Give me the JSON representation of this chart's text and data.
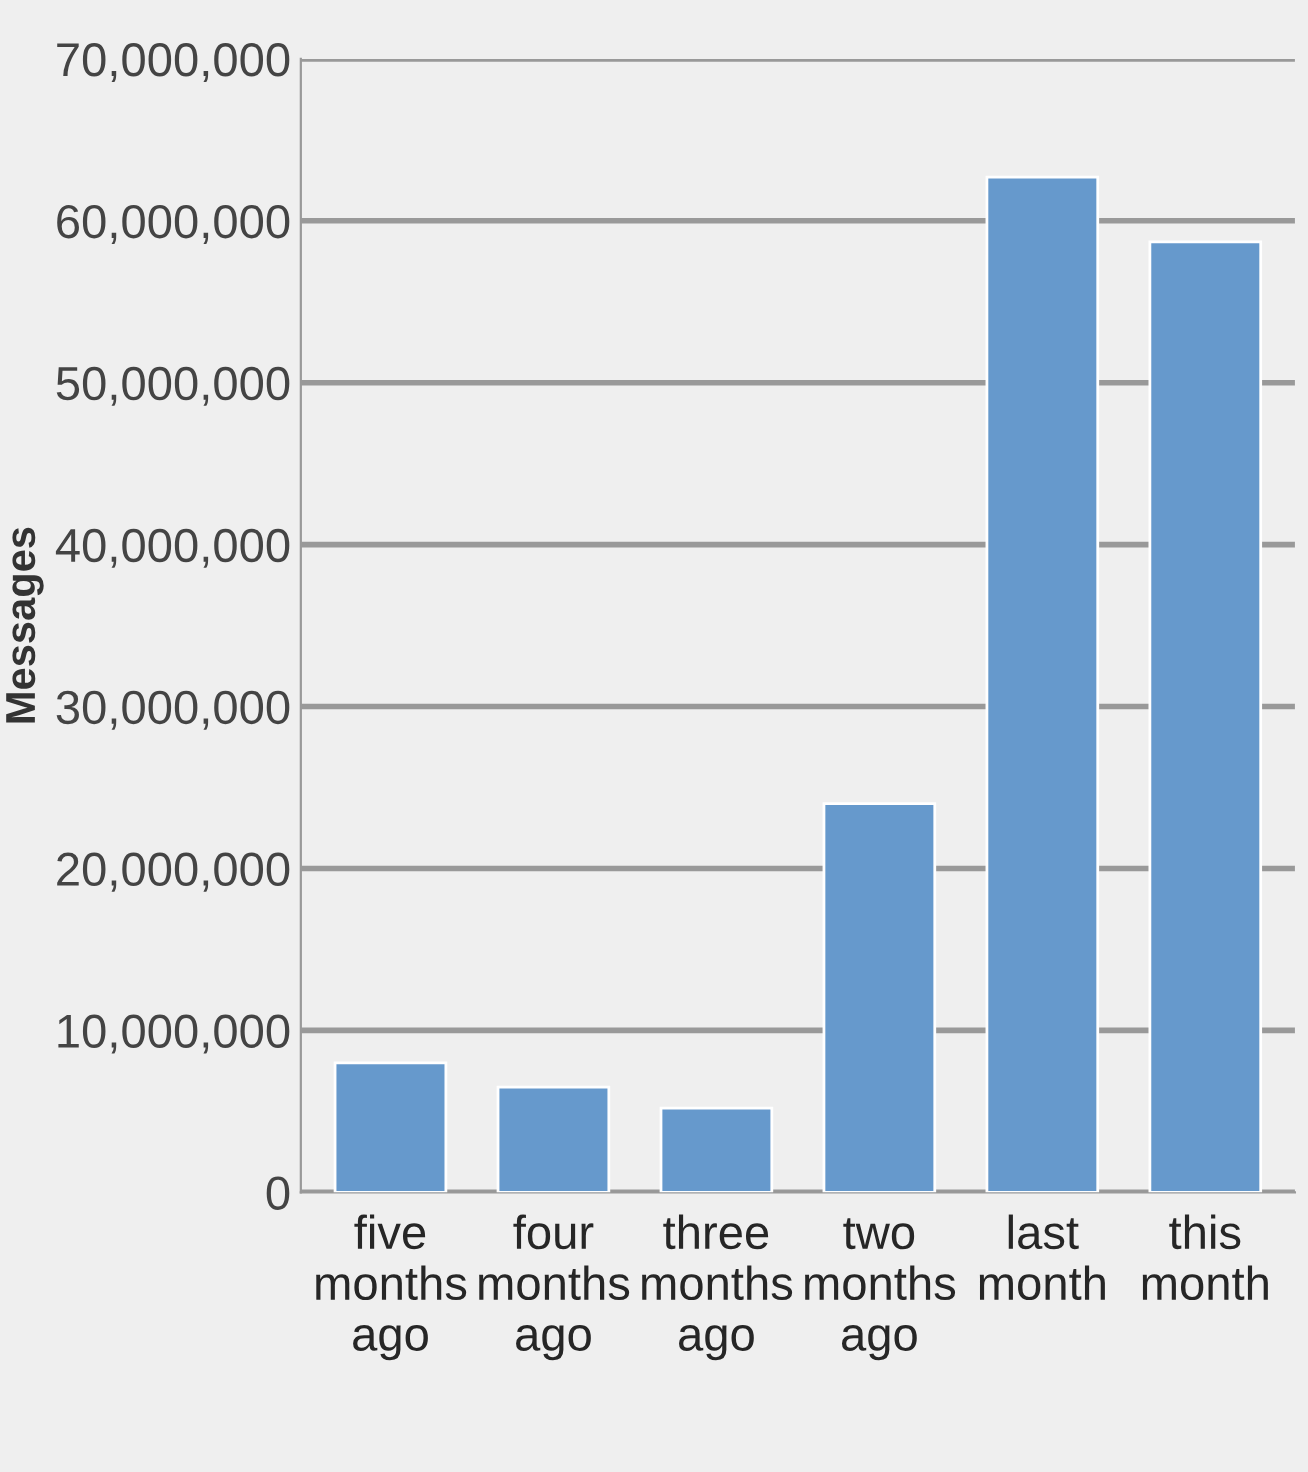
{
  "chart_data": {
    "type": "bar",
    "ylabel": "Messages",
    "categories": [
      "five\nmonths\nago",
      "four\nmonths\nago",
      "three\nmonths\nago",
      "two\nmonths\nago",
      "last\nmonth",
      "this\nmonth"
    ],
    "values": [
      8000000,
      6500000,
      5200000,
      24000000,
      62700000,
      58700000
    ],
    "color": "#6699cc",
    "ylim": [
      0,
      70000000
    ],
    "yticks": [
      {
        "value": 0,
        "label": "0"
      },
      {
        "value": 10000000,
        "label": "10,000,000"
      },
      {
        "value": 20000000,
        "label": "20,000,000"
      },
      {
        "value": 30000000,
        "label": "30,000,000"
      },
      {
        "value": 40000000,
        "label": "40,000,000"
      },
      {
        "value": 50000000,
        "label": "50,000,000"
      },
      {
        "value": 60000000,
        "label": "60,000,000"
      },
      {
        "value": 70000000,
        "label": "70,000,000"
      }
    ],
    "grid": "y"
  }
}
